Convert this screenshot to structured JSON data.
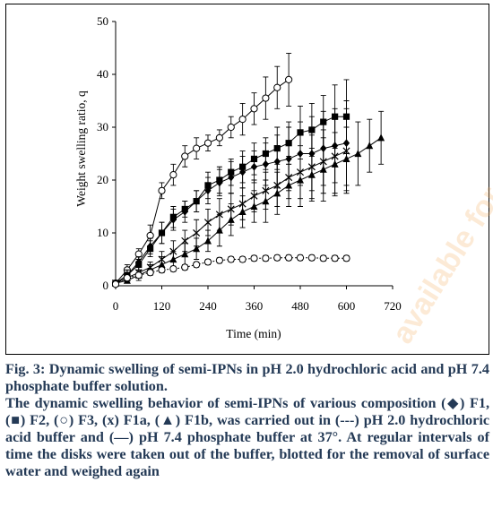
{
  "chart_data": {
    "type": "line",
    "title": "",
    "xlabel": "Time (min)",
    "ylabel": "Weight swelling ratio, q",
    "xlim": [
      0,
      720
    ],
    "ylim": [
      0,
      50
    ],
    "xticks": [
      0,
      120,
      240,
      360,
      480,
      600,
      720
    ],
    "yticks": [
      0,
      10,
      20,
      30,
      40,
      50
    ],
    "xtick_labels": [
      "0",
      "120",
      "240",
      "360",
      "480",
      "600",
      "720"
    ],
    "ytick_labels": [
      "0",
      "10",
      "20",
      "30",
      "40",
      "50"
    ],
    "grid": false,
    "series": [
      {
        "marker": "open-circle",
        "line": "solid",
        "x": [
          0,
          30,
          60,
          90,
          120,
          150,
          180,
          210,
          240,
          270,
          300,
          330,
          360,
          390,
          420,
          450,
          480
        ],
        "y": [
          0.5,
          3,
          6,
          9.5,
          18,
          21,
          24.5,
          26,
          27,
          28,
          30,
          31.5,
          33.5,
          35.5,
          37.5,
          39,
          0
        ],
        "err": [
          0.5,
          1,
          1,
          2,
          1.5,
          2,
          2,
          2,
          1.5,
          1.5,
          2,
          3,
          3,
          4,
          4,
          5,
          0
        ]
      },
      {
        "marker": "filled-square",
        "line": "solid",
        "x": [
          0,
          30,
          60,
          90,
          120,
          150,
          180,
          210,
          240,
          270,
          300,
          330,
          360,
          390,
          420,
          450,
          480,
          510,
          540,
          570,
          600
        ],
        "y": [
          0.5,
          2,
          4,
          7,
          10,
          13,
          14.5,
          16,
          19,
          20,
          21.5,
          22.5,
          24,
          25,
          26,
          27,
          29,
          29.5,
          31,
          32,
          32
        ],
        "err": [
          0.5,
          1,
          1,
          1.5,
          2,
          2,
          1.5,
          2,
          2.5,
          2.5,
          2.5,
          3,
          3,
          3,
          4,
          4,
          5,
          5,
          5,
          6,
          7
        ]
      },
      {
        "marker": "filled-diamond",
        "line": "solid",
        "x": [
          0,
          30,
          60,
          90,
          120,
          150,
          180,
          210,
          240,
          270,
          300,
          330,
          360,
          390,
          420,
          450,
          480,
          510,
          540,
          570,
          600
        ],
        "y": [
          0.5,
          2,
          4.5,
          7.5,
          10,
          12.5,
          14,
          16,
          18,
          19.5,
          20.5,
          21.5,
          22.5,
          23,
          23.5,
          24,
          25,
          25,
          26,
          26.5,
          27
        ],
        "err": [
          0.5,
          1,
          1,
          1.5,
          2,
          2,
          2,
          2,
          2.5,
          2.5,
          3,
          3,
          3,
          4,
          5,
          6,
          6,
          7,
          7,
          7,
          8
        ]
      },
      {
        "marker": "x",
        "line": "solid",
        "x": [
          0,
          30,
          60,
          90,
          120,
          150,
          180,
          210,
          240,
          270,
          300,
          330,
          360,
          390,
          420,
          450,
          480,
          510,
          540,
          570,
          600
        ],
        "y": [
          0.5,
          1.5,
          2.5,
          3.5,
          5,
          6.5,
          8.5,
          10,
          12,
          13.5,
          14.5,
          15.5,
          17,
          18,
          19,
          20.5,
          21.5,
          22.5,
          23.5,
          24.5,
          25.5
        ],
        "err": [
          0.5,
          1,
          1,
          1,
          1.5,
          2,
          2,
          2.5,
          2.5,
          3,
          3,
          3,
          3,
          3.5,
          4,
          4,
          5,
          6,
          6,
          7,
          8
        ]
      },
      {
        "marker": "filled-triangle",
        "line": "solid",
        "x": [
          0,
          30,
          60,
          90,
          120,
          150,
          180,
          210,
          240,
          270,
          300,
          330,
          360,
          390,
          420,
          450,
          480,
          510,
          540,
          570,
          600,
          630,
          660,
          690
        ],
        "y": [
          0.5,
          1,
          2,
          3,
          4,
          5,
          6,
          7,
          8.5,
          10.5,
          12.5,
          14,
          15,
          16,
          17.5,
          19,
          20,
          21,
          22,
          23,
          24,
          25,
          26.5,
          28
        ],
        "err": [
          0.5,
          0.5,
          1,
          1,
          1.5,
          1.5,
          2,
          2,
          2,
          3,
          3,
          3,
          3,
          4,
          4,
          4,
          5,
          5,
          6,
          6,
          6,
          6,
          5,
          5
        ]
      },
      {
        "marker": "open-circle",
        "line": "dashed",
        "x": [
          0,
          30,
          60,
          90,
          120,
          150,
          180,
          210,
          240,
          270,
          300,
          330,
          360,
          390,
          420,
          450,
          480,
          510,
          540,
          570,
          600
        ],
        "y": [
          0.3,
          1.5,
          2,
          2.5,
          3,
          3.2,
          3.5,
          4,
          4.5,
          4.8,
          5,
          5,
          5.2,
          5.2,
          5.3,
          5.3,
          5.3,
          5.3,
          5.2,
          5.2,
          5.2
        ],
        "err": [
          0.2,
          0.5,
          0.5,
          0.5,
          0.5,
          0.5,
          0.5,
          0.5,
          0.5,
          0.5,
          0.5,
          0.5,
          0.5,
          0.5,
          0.5,
          0.5,
          0.5,
          0.5,
          0.5,
          0.5,
          0.5
        ]
      }
    ]
  },
  "caption": {
    "fig_title": "Fig. 3: Dynamic swelling of semi-IPNs in pH 2.0 hydrochloric acid and pH 7.4 phosphate buffer solution.",
    "description": "The dynamic swelling behavior of semi-IPNs of various composition (◆) F1, (■) F2, (○) F3, (x) F1a, (▲) F1b, was carried out in (---) pH 2.0 hydrochloric acid buffer and (—) pH 7.4 phosphate buffer at 37°. At regular intervals of time the disks were taken out of the buffer, blotted for the removal of surface water and weighed again"
  },
  "watermark": "available for"
}
